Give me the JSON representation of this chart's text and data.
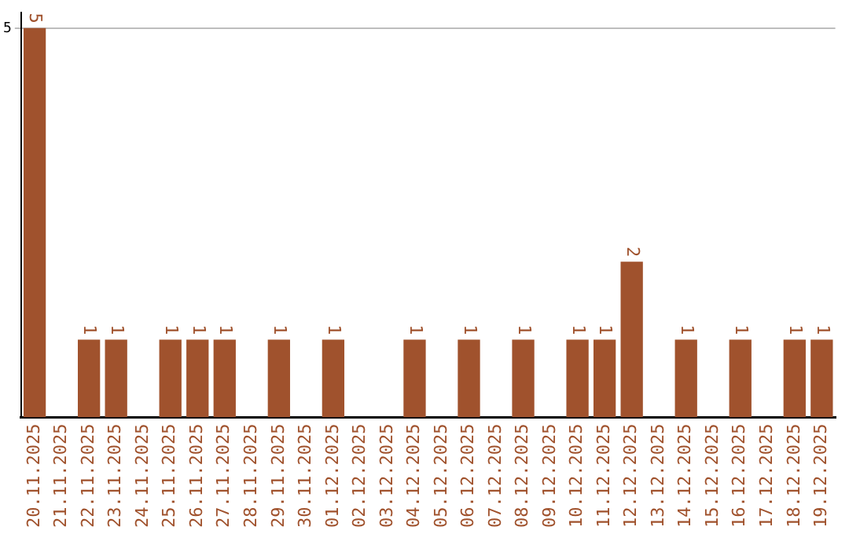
{
  "chart_data": {
    "type": "bar",
    "categories": [
      "20.11.2025",
      "21.11.2025",
      "22.11.2025",
      "23.11.2025",
      "24.11.2025",
      "25.11.2025",
      "26.11.2025",
      "27.11.2025",
      "28.11.2025",
      "29.11.2025",
      "30.11.2025",
      "01.12.2025",
      "02.12.2025",
      "03.12.2025",
      "04.12.2025",
      "05.12.2025",
      "06.12.2025",
      "07.12.2025",
      "08.12.2025",
      "09.12.2025",
      "10.12.2025",
      "11.12.2025",
      "12.12.2025",
      "13.12.2025",
      "14.12.2025",
      "15.12.2025",
      "16.12.2025",
      "17.12.2025",
      "18.12.2025",
      "19.12.2025"
    ],
    "values": [
      5,
      0,
      1,
      1,
      0,
      1,
      1,
      1,
      0,
      1,
      0,
      1,
      0,
      0,
      1,
      0,
      1,
      0,
      1,
      0,
      1,
      1,
      2,
      0,
      1,
      0,
      1,
      0,
      1,
      1
    ],
    "value_labels": [
      "5",
      null,
      "1",
      "1",
      null,
      "1",
      "1",
      "1",
      null,
      "1",
      null,
      "1",
      null,
      null,
      "1",
      null,
      "1",
      null,
      "1",
      null,
      "1",
      "1",
      "2",
      null,
      "1",
      null,
      "1",
      null,
      "1",
      "1"
    ],
    "color": "#a0522d",
    "ylim": [
      0,
      5.2
    ],
    "yticks": [
      5
    ],
    "grid": "y",
    "legend": false
  }
}
